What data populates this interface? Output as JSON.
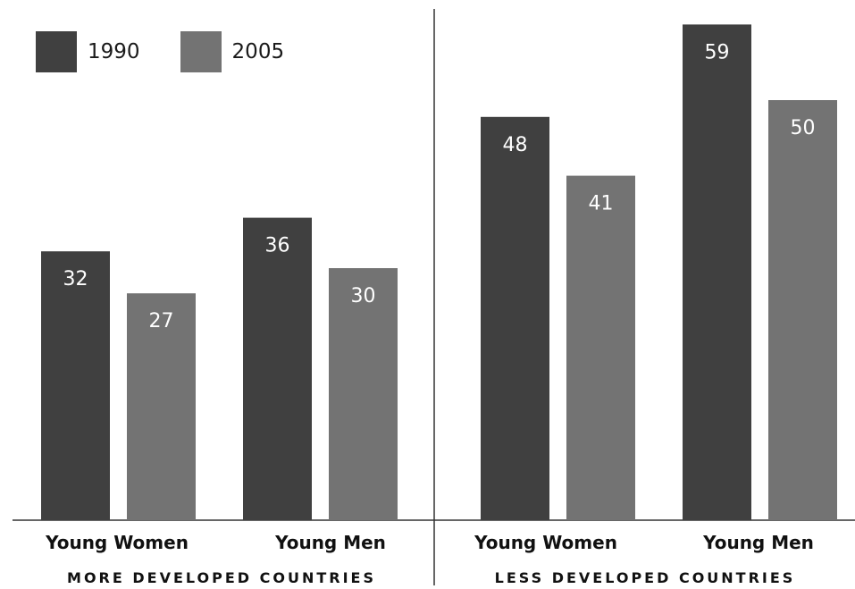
{
  "chart_data": {
    "type": "bar",
    "series": [
      {
        "name": "1990",
        "color": "#404040"
      },
      {
        "name": "2005",
        "color": "#737373"
      }
    ],
    "groups": [
      {
        "label": "MORE DEVELOPED COUNTRIES",
        "categories": [
          "Young Women",
          "Young Men"
        ],
        "values": {
          "1990": [
            32,
            36
          ],
          "2005": [
            27,
            30
          ]
        }
      },
      {
        "label": "LESS DEVELOPED COUNTRIES",
        "categories": [
          "Young Women",
          "Young Men"
        ],
        "values": {
          "1990": [
            48,
            59
          ],
          "2005": [
            41,
            50
          ]
        }
      }
    ],
    "ylim": [
      0,
      60
    ],
    "grid": false,
    "legend_position": "top-left"
  }
}
